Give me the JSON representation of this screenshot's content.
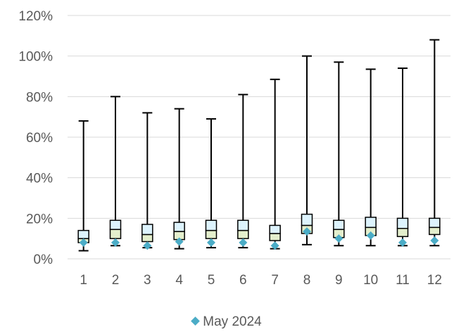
{
  "chart_data": {
    "type": "boxplot",
    "title": "",
    "xlabel": "",
    "ylabel": "",
    "ylim": [
      0,
      1.2
    ],
    "y_ticks": [
      "0%",
      "20%",
      "40%",
      "60%",
      "80%",
      "100%",
      "120%"
    ],
    "y_tick_values": [
      0,
      0.2,
      0.4,
      0.6,
      0.8,
      1.0,
      1.2
    ],
    "categories": [
      "1",
      "2",
      "3",
      "4",
      "5",
      "6",
      "7",
      "8",
      "9",
      "10",
      "11",
      "12"
    ],
    "boxes": [
      {
        "min": 0.04,
        "q1": 0.08,
        "median": 0.1,
        "q3": 0.14,
        "max": 0.68
      },
      {
        "min": 0.065,
        "q1": 0.1,
        "median": 0.145,
        "q3": 0.19,
        "max": 0.8
      },
      {
        "min": 0.055,
        "q1": 0.085,
        "median": 0.12,
        "q3": 0.17,
        "max": 0.72
      },
      {
        "min": 0.05,
        "q1": 0.095,
        "median": 0.135,
        "q3": 0.18,
        "max": 0.74
      },
      {
        "min": 0.055,
        "q1": 0.1,
        "median": 0.14,
        "q3": 0.19,
        "max": 0.69
      },
      {
        "min": 0.055,
        "q1": 0.1,
        "median": 0.14,
        "q3": 0.19,
        "max": 0.81
      },
      {
        "min": 0.05,
        "q1": 0.09,
        "median": 0.125,
        "q3": 0.165,
        "max": 0.885
      },
      {
        "min": 0.07,
        "q1": 0.125,
        "median": 0.165,
        "q3": 0.22,
        "max": 1.0
      },
      {
        "min": 0.065,
        "q1": 0.105,
        "median": 0.145,
        "q3": 0.19,
        "max": 0.97
      },
      {
        "min": 0.065,
        "q1": 0.115,
        "median": 0.155,
        "q3": 0.205,
        "max": 0.935
      },
      {
        "min": 0.065,
        "q1": 0.11,
        "median": 0.15,
        "q3": 0.2,
        "max": 0.94
      },
      {
        "min": 0.065,
        "q1": 0.12,
        "median": 0.155,
        "q3": 0.2,
        "max": 1.08
      }
    ],
    "series": [
      {
        "name": "May 2024",
        "values": [
          0.08,
          0.08,
          0.065,
          0.085,
          0.08,
          0.08,
          0.065,
          0.135,
          0.1,
          0.115,
          0.08,
          0.09
        ]
      }
    ],
    "legend_position": "bottom",
    "grid": "horizontal",
    "colors": {
      "box_upper": "#ddf3fd",
      "box_lower": "#e4efcd",
      "box_border": "#000000",
      "whisker": "#000000",
      "marker": "#4bacc6",
      "grid": "#d9d9d9",
      "text": "#595959"
    }
  }
}
